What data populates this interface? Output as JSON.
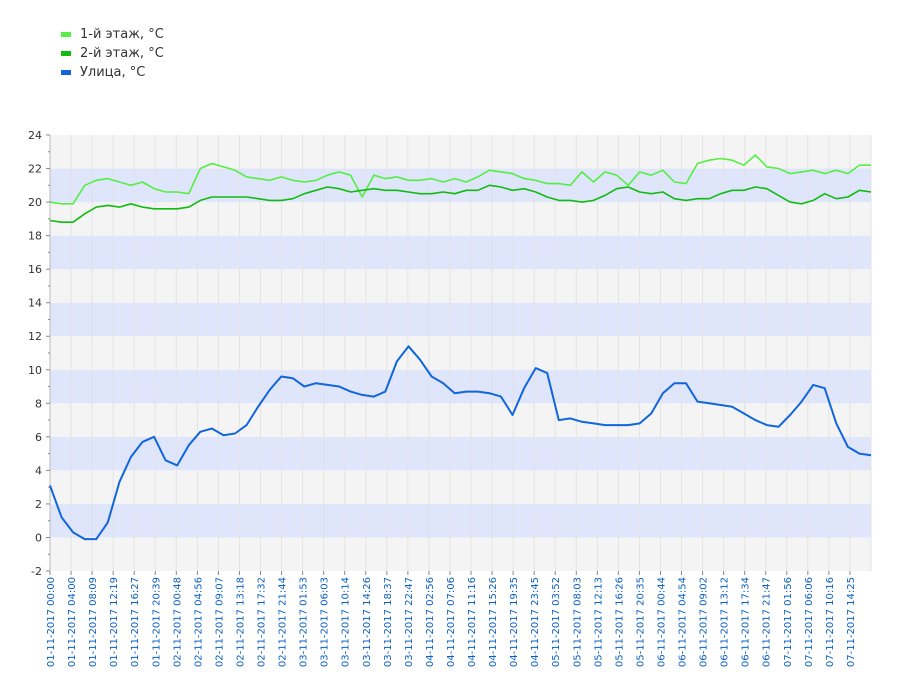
{
  "chart_data": {
    "type": "line",
    "title": "",
    "xlabel": "",
    "ylabel": "",
    "ylim": [
      -2,
      24
    ],
    "yticks": [
      -2,
      0,
      2,
      4,
      6,
      8,
      10,
      12,
      14,
      16,
      18,
      20,
      22,
      24
    ],
    "grid": true,
    "legend_position": "top-left",
    "x_labels": [
      "01-11-2017 00:00",
      "01-11-2017 04:00",
      "01-11-2017 08:09",
      "01-11-2017 12:19",
      "01-11-2017 16:27",
      "01-11-2017 20:39",
      "02-11-2017 00:48",
      "02-11-2017 04:56",
      "02-11-2017 09:07",
      "02-11-2017 13:18",
      "02-11-2017 17:32",
      "02-11-2017 21:44",
      "03-11-2017 01:53",
      "03-11-2017 06:03",
      "03-11-2017 10:14",
      "03-11-2017 14:26",
      "03-11-2017 18:37",
      "03-11-2017 22:47",
      "04-11-2017 02:56",
      "04-11-2017 07:06",
      "04-11-2017 11:16",
      "04-11-2017 15:26",
      "04-11-2017 19:35",
      "04-11-2017 23:45",
      "05-11-2017 03:52",
      "05-11-2017 08:03",
      "05-11-2017 12:13",
      "05-11-2017 16:26",
      "05-11-2017 20:35",
      "06-11-2017 00:44",
      "06-11-2017 04:54",
      "06-11-2017 09:02",
      "06-11-2017 13:12",
      "06-11-2017 17:34",
      "06-11-2017 21:47",
      "07-11-2017 01:56",
      "07-11-2017 06:06",
      "07-11-2017 10:16",
      "07-11-2017 14:25"
    ],
    "series": [
      {
        "name": "1-й этаж, °C",
        "color": "#55ee44",
        "values": [
          20.0,
          19.9,
          19.9,
          21.0,
          21.3,
          21.4,
          21.2,
          21.0,
          21.2,
          20.8,
          20.6,
          20.6,
          20.5,
          22.0,
          22.3,
          22.1,
          21.9,
          21.5,
          21.4,
          21.3,
          21.5,
          21.3,
          21.2,
          21.3,
          21.6,
          21.8,
          21.6,
          20.3,
          21.6,
          21.4,
          21.5,
          21.3,
          21.3,
          21.4,
          21.2,
          21.4,
          21.2,
          21.5,
          21.9,
          21.8,
          21.7,
          21.4,
          21.3,
          21.1,
          21.1,
          21.0,
          21.8,
          21.2,
          21.8,
          21.6,
          21.0,
          21.8,
          21.6,
          21.9,
          21.2,
          21.1,
          22.3,
          22.5,
          22.6,
          22.5,
          22.2,
          22.8,
          22.1,
          22.0,
          21.7,
          21.8,
          21.9,
          21.7,
          21.9,
          21.7,
          22.2,
          22.2
        ]
      },
      {
        "name": "2-й этаж, °C",
        "color": "#11bb11",
        "values": [
          18.9,
          18.8,
          18.8,
          19.3,
          19.7,
          19.8,
          19.7,
          19.9,
          19.7,
          19.6,
          19.6,
          19.6,
          19.7,
          20.1,
          20.3,
          20.3,
          20.3,
          20.3,
          20.2,
          20.1,
          20.1,
          20.2,
          20.5,
          20.7,
          20.9,
          20.8,
          20.6,
          20.7,
          20.8,
          20.7,
          20.7,
          20.6,
          20.5,
          20.5,
          20.6,
          20.5,
          20.7,
          20.7,
          21.0,
          20.9,
          20.7,
          20.8,
          20.6,
          20.3,
          20.1,
          20.1,
          20.0,
          20.1,
          20.4,
          20.8,
          20.9,
          20.6,
          20.5,
          20.6,
          20.2,
          20.1,
          20.2,
          20.2,
          20.5,
          20.7,
          20.7,
          20.9,
          20.8,
          20.4,
          20.0,
          19.9,
          20.1,
          20.5,
          20.2,
          20.3,
          20.7,
          20.6
        ]
      },
      {
        "name": "Улица, °C",
        "color": "#1166dd",
        "values": [
          3.1,
          1.2,
          0.3,
          -0.1,
          -0.1,
          0.9,
          3.3,
          4.8,
          5.7,
          6.0,
          4.6,
          4.3,
          5.5,
          6.3,
          6.5,
          6.1,
          6.2,
          6.7,
          7.8,
          8.8,
          9.6,
          9.5,
          9.0,
          9.2,
          9.1,
          9.0,
          8.7,
          8.5,
          8.4,
          8.7,
          10.5,
          11.4,
          10.6,
          9.6,
          9.2,
          8.6,
          8.7,
          8.7,
          8.6,
          8.4,
          7.3,
          8.9,
          10.1,
          9.8,
          7.0,
          7.1,
          6.9,
          6.8,
          6.7,
          6.7,
          6.7,
          6.8,
          7.4,
          8.6,
          9.2,
          9.2,
          8.1,
          8.0,
          7.9,
          7.8,
          7.4,
          7.0,
          6.7,
          6.6,
          7.3,
          8.1,
          9.1,
          8.9,
          6.8,
          5.4,
          5.0,
          4.9
        ]
      }
    ]
  }
}
